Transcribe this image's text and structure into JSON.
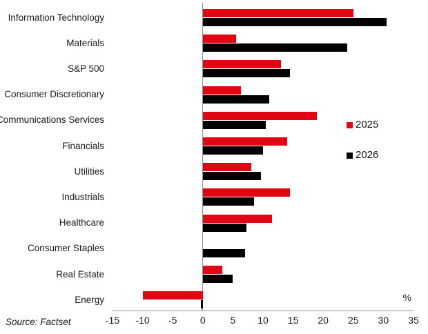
{
  "source_note": "Source: Factset",
  "chart_data": {
    "type": "bar",
    "orientation": "horizontal",
    "title": "",
    "xlabel": "%",
    "ylabel": "",
    "xlim": [
      -15,
      35
    ],
    "xticks": [
      -15,
      -10,
      -5,
      0,
      5,
      10,
      15,
      20,
      25,
      30,
      35
    ],
    "grid": false,
    "legend_position": "center-right",
    "axis_color": "#8c8c8c",
    "categories": [
      "Information Technology",
      "Materials",
      "S&P 500",
      "Consumer Discretionary",
      "Communications Services",
      "Financials",
      "Utilities",
      "Industrials",
      "Healthcare",
      "Consumer Staples",
      "Real Estate",
      "Energy"
    ],
    "series": [
      {
        "name": "2025",
        "color": "#e00613",
        "values": [
          25,
          5.5,
          13,
          6.3,
          19,
          14,
          8,
          14.5,
          11.5,
          0,
          3.2,
          -10
        ]
      },
      {
        "name": "2026",
        "color": "#000000",
        "values": [
          30.5,
          24,
          14.5,
          11,
          10.5,
          10,
          9.7,
          8.5,
          7.3,
          7,
          5,
          -0.3
        ]
      }
    ]
  }
}
